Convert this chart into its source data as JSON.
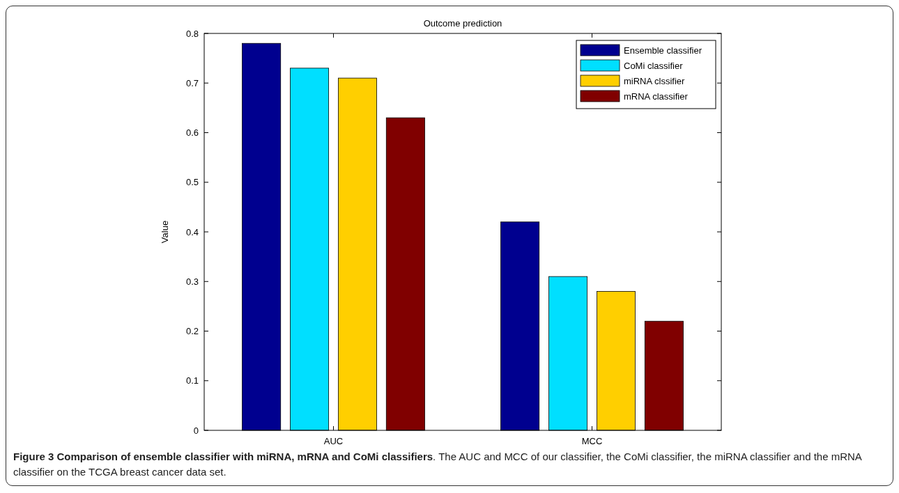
{
  "chart_data": {
    "type": "bar",
    "title": "Outcome prediction",
    "ylabel": "Value",
    "categories": [
      "AUC",
      "MCC"
    ],
    "series": [
      {
        "name": "Ensemble classifier",
        "color": "#00008f",
        "values": [
          0.78,
          0.42
        ]
      },
      {
        "name": "CoMi classifier",
        "color": "#00dfff",
        "values": [
          0.73,
          0.31
        ]
      },
      {
        "name": "miRNA clssifier",
        "color": "#ffcf00",
        "values": [
          0.71,
          0.28
        ]
      },
      {
        "name": "mRNA classifier",
        "color": "#800000",
        "values": [
          0.63,
          0.22
        ]
      }
    ],
    "ylim": [
      0,
      0.8
    ],
    "yticks": [
      0,
      0.1,
      0.2,
      0.3,
      0.4,
      0.5,
      0.6,
      0.7,
      0.8
    ],
    "legend": "top right",
    "annotations": [
      "Figure 3 Comparison of ensemble classifier with miRNA, mRNA and CoMi classifiers",
      ". The AUC and MCC of our classifier, the CoMi classifier, the miRNA classifier and the mRNA classifier on the TCGA breast cancer data set."
    ]
  }
}
